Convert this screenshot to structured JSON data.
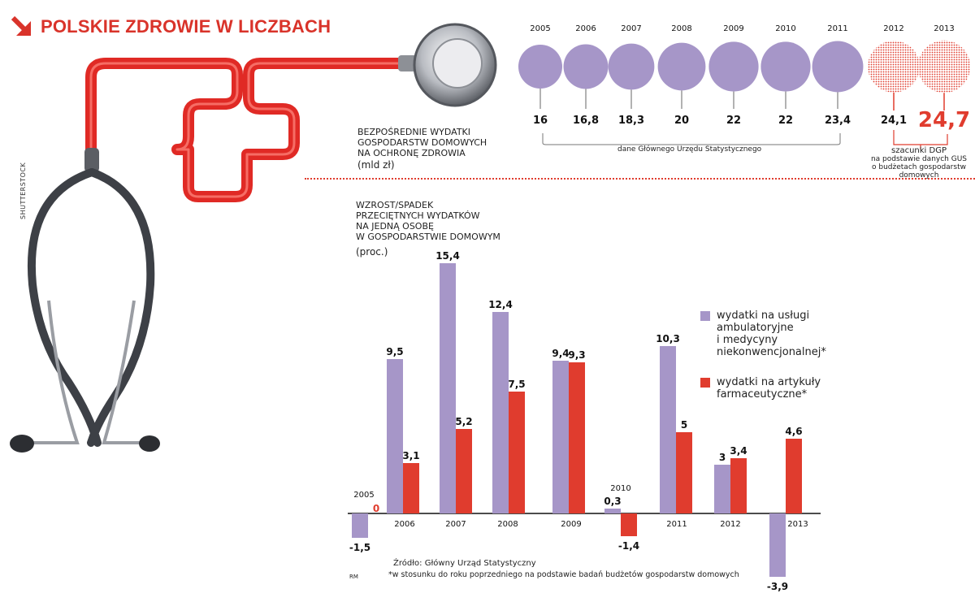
{
  "page": {
    "title": "POLSKIE ZDROWIE W LICZBACH",
    "credit": "SHUTTERSTOCK",
    "author": "RM"
  },
  "colors": {
    "purple": "#a696c8",
    "red": "#e03c2e",
    "title": "#d9332a"
  },
  "icons": {
    "title_arrow": "arrow-down-right-icon",
    "illustration": "stethoscope-icon"
  },
  "top_chart_caption": [
    "BEZPOŚREDNIE WYDATKI",
    "GOSPODARSTW DOMOWYCH",
    "NA OCHRONĘ ZDROWIA",
    "(mld zł)"
  ],
  "gus_note": "dane Głównego Urzędu Statystycznego",
  "dgp_note": [
    "szacunki DGP",
    "na podstawie danych GUS",
    "o budżetach gospodarstw",
    "domowych"
  ],
  "bar_chart_caption": [
    "WZROST/SPADEK",
    "PRZECIĘTNYCH WYDATKÓW",
    "NA JEDNĄ OSOBĘ",
    "W GOSPODARSTWIE DOMOWYM",
    "(proc.)"
  ],
  "legend": [
    {
      "label": "wydatki na usługi\nambulatoryjne\ni medycyny\nniekonwencjonalnej*",
      "color": "#a696c8"
    },
    {
      "label": "wydatki na artykuły\nfarmaceutyczne*",
      "color": "#e03c2e"
    }
  ],
  "source": "Źródło: Główny Urząd Statystyczny",
  "footnote": "*w stosunku do roku poprzedniego na podstawie badań budżetów gospodarstw domowych",
  "chart_data": [
    {
      "type": "bubble",
      "title": "BEZPOŚREDNIE WYDATKI GOSPODARSTW DOMOWYCH NA OCHRONĘ ZDROWIA (mld zł)",
      "categories": [
        "2005",
        "2006",
        "2007",
        "2008",
        "2009",
        "2010",
        "2011",
        "2012",
        "2013"
      ],
      "values": [
        "16",
        "16,8",
        "18,3",
        "20",
        "22",
        "22",
        "23,4",
        "24,1",
        "24,7"
      ],
      "estimated_from_index": 7
    },
    {
      "type": "bar",
      "categories": [
        "2005",
        "2006",
        "2007",
        "2008",
        "2009",
        "2010",
        "2011",
        "2012",
        "2013"
      ],
      "series": [
        {
          "name": "wydatki na usługi ambulatoryjne i medycyny niekonwencjonalnej*",
          "values": [
            -1.5,
            9.5,
            15.4,
            12.4,
            9.4,
            0.3,
            10.3,
            3,
            -3.9
          ],
          "labels": [
            "-1,5",
            "9,5",
            "15,4",
            "12,4",
            "9,4",
            "0,3",
            "10,3",
            "3",
            "-3,9"
          ]
        },
        {
          "name": "wydatki na artykuły farmaceutyczne*",
          "values": [
            0,
            3.1,
            5.2,
            7.5,
            9.3,
            -1.4,
            5,
            3.4,
            4.6
          ],
          "labels": [
            "0",
            "3,1",
            "5,2",
            "7,5",
            "9,3",
            "-1,4",
            "5",
            "3,4",
            "4,6"
          ]
        }
      ],
      "ylabel": "(proc.)",
      "ylim": [
        -3.9,
        15.4
      ]
    }
  ]
}
